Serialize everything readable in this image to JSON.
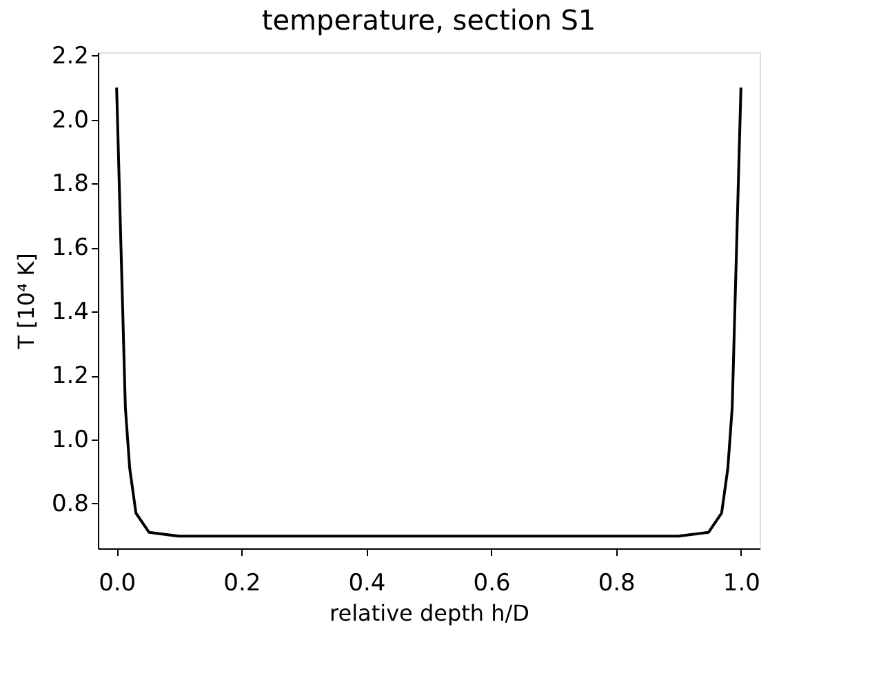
{
  "chart_data": {
    "type": "line",
    "title": "temperature, section S1",
    "xlabel": "relative depth h/D",
    "ylabel": "T [10⁴ K]",
    "x": [
      0,
      0.014,
      0.021,
      0.031,
      0.052,
      0.1,
      0.5,
      0.9,
      0.948,
      0.969,
      0.979,
      0.986,
      1.0
    ],
    "series": [
      {
        "color": "#000000",
        "values": [
          2.1,
          1.1,
          0.91,
          0.77,
          0.71,
          0.698,
          0.698,
          0.698,
          0.71,
          0.77,
          0.91,
          1.1,
          2.1
        ]
      }
    ],
    "xlim": [
      -0.03,
      1.03
    ],
    "xticks": [
      {
        "value": 0,
        "label": "0.0"
      },
      0.2,
      0.4,
      0.6,
      0.8,
      {
        "value": 1,
        "label": "1.0"
      }
    ],
    "ylim": [
      0.66,
      2.21
    ],
    "yticks": [
      0.8,
      {
        "value": 1,
        "label": "1.0"
      },
      1.2,
      1.4,
      1.6,
      1.8,
      {
        "value": 2,
        "label": "2.0"
      },
      2.2
    ],
    "grid": false,
    "marker": "none",
    "line_style": "solid"
  }
}
